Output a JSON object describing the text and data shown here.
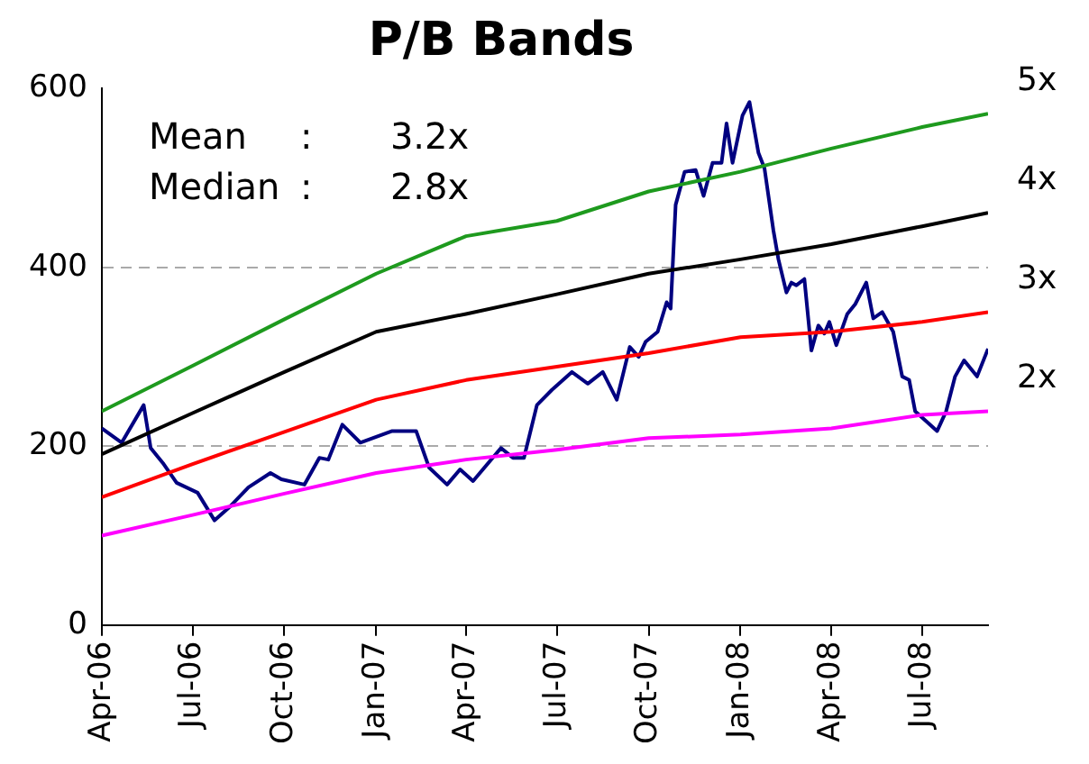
{
  "chart_data": {
    "type": "line",
    "title": "P/B Bands",
    "annotations": [
      "Mean    :     3.2x",
      "Median :     2.8x"
    ],
    "xlim": [
      "2006-04-01",
      "2008-09-05"
    ],
    "xticks": [
      {
        "value": "2006-04-01",
        "label": "Apr-06"
      },
      {
        "value": "2006-07-01",
        "label": "Jul-06"
      },
      {
        "value": "2006-10-01",
        "label": "Oct-06"
      },
      {
        "value": "2007-01-01",
        "label": "Jan-07"
      },
      {
        "value": "2007-04-01",
        "label": "Apr-07"
      },
      {
        "value": "2007-07-01",
        "label": "Jul-07"
      },
      {
        "value": "2007-10-01",
        "label": "Oct-07"
      },
      {
        "value": "2008-01-01",
        "label": "Jan-08"
      },
      {
        "value": "2008-04-01",
        "label": "Apr-08"
      },
      {
        "value": "2008-07-01",
        "label": "Jul-08"
      }
    ],
    "ylim": [
      0,
      600
    ],
    "yticks": [
      0,
      200,
      400,
      600
    ],
    "grid": "y",
    "legend": false,
    "marker": "none",
    "line_style": "solid",
    "series": [
      {
        "name": "5x",
        "color": "#1e9a1e",
        "x": [
          "2006-04-01",
          "2006-07-01",
          "2006-10-01",
          "2007-01-01",
          "2007-04-01",
          "2007-07-01",
          "2007-10-01",
          "2008-01-01",
          "2008-04-01",
          "2008-07-01",
          "2008-09-05"
        ],
        "values": [
          239,
          290,
          342,
          393,
          435,
          452,
          485,
          507,
          533,
          557,
          572
        ]
      },
      {
        "name": "4x",
        "color": "#000000",
        "x": [
          "2006-04-01",
          "2006-07-01",
          "2006-10-01",
          "2007-01-01",
          "2007-04-01",
          "2007-07-01",
          "2007-10-01",
          "2008-01-01",
          "2008-04-01",
          "2008-07-01",
          "2008-09-05"
        ],
        "values": [
          191,
          237,
          283,
          328,
          348,
          370,
          393,
          409,
          426,
          446,
          461
        ]
      },
      {
        "name": "3x",
        "color": "#ff0000",
        "x": [
          "2006-04-01",
          "2006-07-01",
          "2006-10-01",
          "2007-01-01",
          "2007-04-01",
          "2007-07-01",
          "2007-10-01",
          "2008-01-01",
          "2008-04-01",
          "2008-07-01",
          "2008-09-05"
        ],
        "values": [
          143,
          180,
          216,
          252,
          274,
          289,
          304,
          322,
          328,
          339,
          350
        ]
      },
      {
        "name": "2x",
        "color": "#ff00ff",
        "x": [
          "2006-04-01",
          "2006-07-01",
          "2006-10-01",
          "2007-01-01",
          "2007-04-01",
          "2007-07-01",
          "2007-10-01",
          "2008-01-01",
          "2008-04-01",
          "2008-07-01",
          "2008-09-05"
        ],
        "values": [
          100,
          123,
          147,
          170,
          185,
          196,
          209,
          213,
          220,
          235,
          239
        ]
      },
      {
        "color": "#000080",
        "x": [
          "2006-04-01",
          "2006-04-21",
          "2006-05-13",
          "2006-05-20",
          "2006-06-02",
          "2006-06-15",
          "2006-07-06",
          "2006-07-23",
          "2006-08-08",
          "2006-08-26",
          "2006-09-17",
          "2006-09-28",
          "2006-10-21",
          "2006-11-05",
          "2006-11-14",
          "2006-11-28",
          "2006-12-16",
          "2007-01-17",
          "2007-02-10",
          "2007-02-23",
          "2007-03-13",
          "2007-03-26",
          "2007-04-08",
          "2007-05-06",
          "2007-05-18",
          "2007-05-29",
          "2007-06-11",
          "2007-06-26",
          "2007-07-16",
          "2007-08-01",
          "2007-08-16",
          "2007-08-30",
          "2007-09-12",
          "2007-09-21",
          "2007-09-28",
          "2007-10-10",
          "2007-10-19",
          "2007-10-23",
          "2007-10-28",
          "2007-11-06",
          "2007-11-17",
          "2007-11-25",
          "2007-12-04",
          "2007-12-13",
          "2007-12-18",
          "2007-12-24",
          "2008-01-03",
          "2008-01-10",
          "2008-01-19",
          "2008-01-25",
          "2008-02-03",
          "2008-02-08",
          "2008-02-16",
          "2008-02-21",
          "2008-02-26",
          "2008-03-05",
          "2008-03-12",
          "2008-03-19",
          "2008-03-25",
          "2008-03-30",
          "2008-04-06",
          "2008-04-17",
          "2008-04-25",
          "2008-05-06",
          "2008-05-13",
          "2008-05-22",
          "2008-06-02",
          "2008-06-11",
          "2008-06-18",
          "2008-06-24",
          "2008-07-03",
          "2008-07-16",
          "2008-07-25",
          "2008-08-03",
          "2008-08-12",
          "2008-08-25",
          "2008-09-05"
        ],
        "values": [
          220,
          204,
          246,
          198,
          180,
          159,
          148,
          117,
          133,
          154,
          170,
          163,
          157,
          187,
          185,
          224,
          204,
          217,
          217,
          176,
          157,
          174,
          161,
          198,
          187,
          187,
          246,
          263,
          283,
          270,
          283,
          252,
          311,
          300,
          317,
          328,
          361,
          354,
          470,
          507,
          509,
          480,
          517,
          517,
          561,
          517,
          570,
          585,
          528,
          511,
          441,
          409,
          372,
          383,
          380,
          387,
          307,
          335,
          326,
          339,
          313,
          348,
          359,
          383,
          343,
          350,
          328,
          278,
          274,
          239,
          230,
          217,
          239,
          278,
          296,
          278,
          309
        ]
      }
    ]
  }
}
